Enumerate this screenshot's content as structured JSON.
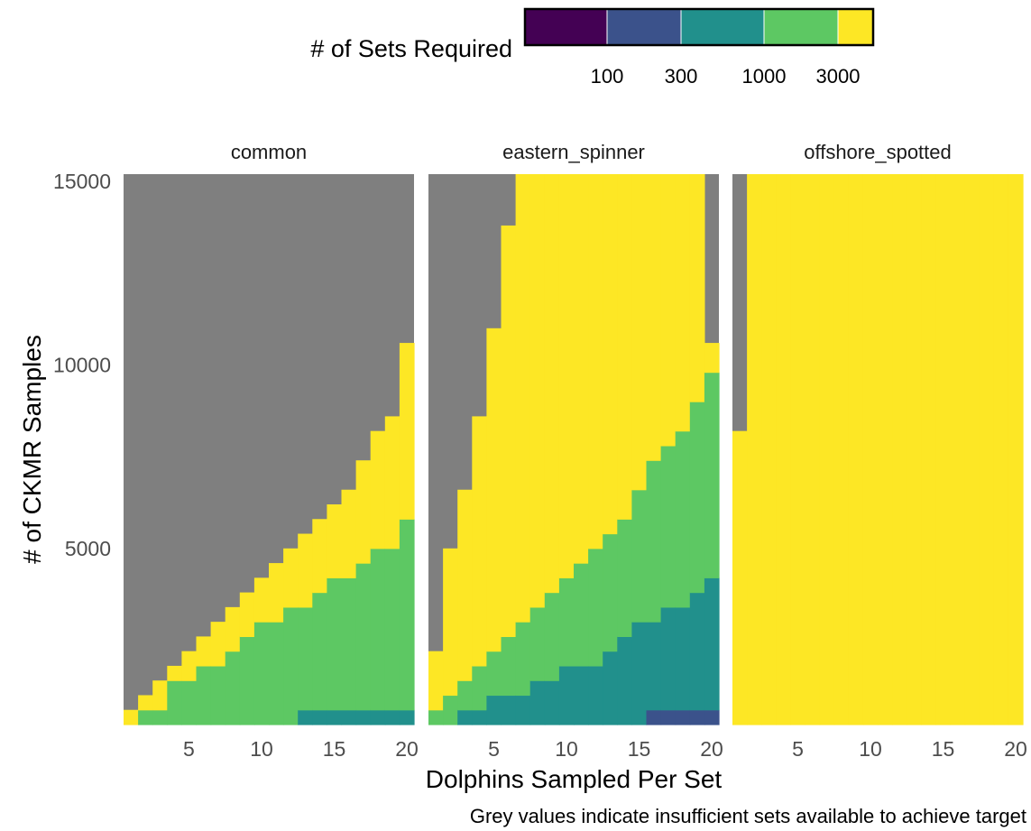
{
  "chart_data": {
    "type": "heatmap",
    "legend": {
      "title": "# of Sets Required",
      "placement": "top",
      "breaks": [
        "100",
        "300",
        "1000",
        "3000"
      ],
      "bins": [
        {
          "key": "lt100",
          "color": "#440154"
        },
        {
          "key": "100-300",
          "color": "#3b528b"
        },
        {
          "key": "300-1000",
          "color": "#21908c"
        },
        {
          "key": "1000-3000",
          "color": "#5dc863"
        },
        {
          "key": "gt3000",
          "color": "#fde725"
        }
      ],
      "insufficient_color": "#7f7f7f"
    },
    "xlabel": "Dolphins Sampled Per Set",
    "ylabel": "# of CKMR Samples",
    "caption": "Grey values indicate insufficient sets available to achieve target",
    "x": {
      "min": 1,
      "max": 20,
      "ticks": [
        5,
        10,
        15,
        20
      ]
    },
    "y": {
      "min": 400,
      "max": 15000,
      "step": 400,
      "ticks": [
        5000,
        10000,
        15000
      ]
    },
    "panels": [
      {
        "name": "common",
        "thresholds": {
          "lt100": [
            0,
            0,
            0,
            0,
            0,
            0,
            0,
            0,
            0,
            0,
            0,
            0,
            0,
            0,
            0,
            0,
            0,
            0,
            0,
            0
          ],
          "100-300": [
            0,
            0,
            0,
            0,
            0,
            0,
            0,
            0,
            0,
            0,
            0,
            0,
            0,
            0,
            0,
            0,
            0,
            0,
            0,
            0
          ],
          "300-1000": [
            0,
            0,
            0,
            0,
            0,
            0,
            0,
            0,
            0,
            0,
            0,
            0,
            400,
            400,
            400,
            400,
            400,
            400,
            400,
            400
          ],
          "1000-3000": [
            0,
            400,
            400,
            1200,
            1200,
            1600,
            1600,
            2000,
            2400,
            2800,
            2800,
            3200,
            3200,
            3600,
            4000,
            4000,
            4400,
            4800,
            4800,
            5600
          ],
          "gt3000": [
            400,
            800,
            1200,
            1600,
            2000,
            2400,
            2800,
            3200,
            3600,
            4000,
            4400,
            4800,
            5200,
            5600,
            6000,
            6400,
            7200,
            8000,
            8400,
            10400
          ]
        }
      },
      {
        "name": "eastern_spinner",
        "thresholds": {
          "lt100": [
            0,
            0,
            0,
            0,
            0,
            0,
            0,
            0,
            0,
            0,
            0,
            0,
            0,
            0,
            0,
            0,
            0,
            0,
            0,
            0
          ],
          "100-300": [
            0,
            0,
            0,
            0,
            0,
            0,
            0,
            0,
            0,
            0,
            0,
            0,
            0,
            0,
            0,
            400,
            400,
            400,
            400,
            400
          ],
          "300-1000": [
            0,
            0,
            400,
            400,
            800,
            800,
            800,
            1200,
            1200,
            1600,
            1600,
            1600,
            2000,
            2400,
            2800,
            2800,
            3200,
            3200,
            3600,
            4000
          ],
          "1000-3000": [
            400,
            800,
            1200,
            1600,
            2000,
            2400,
            2800,
            3200,
            3600,
            4000,
            4400,
            4800,
            5200,
            5600,
            6400,
            7200,
            7600,
            8000,
            8800,
            9600
          ],
          "gt3000": [
            2000,
            4800,
            6400,
            8400,
            10800,
            13600,
            15000,
            15000,
            15000,
            15000,
            15000,
            15000,
            15000,
            15000,
            15000,
            15000,
            15000,
            15000,
            15000,
            10400
          ]
        }
      },
      {
        "name": "offshore_spotted",
        "thresholds": {
          "lt100": [
            0,
            0,
            0,
            0,
            0,
            0,
            0,
            0,
            0,
            0,
            0,
            0,
            0,
            0,
            0,
            0,
            0,
            0,
            0,
            0
          ],
          "100-300": [
            0,
            0,
            0,
            0,
            0,
            0,
            0,
            0,
            0,
            0,
            0,
            0,
            0,
            0,
            0,
            0,
            0,
            0,
            0,
            0
          ],
          "300-1000": [
            0,
            0,
            0,
            0,
            0,
            0,
            0,
            0,
            0,
            0,
            0,
            0,
            0,
            0,
            0,
            0,
            0,
            0,
            0,
            0
          ],
          "1000-3000": [
            0,
            0,
            0,
            0,
            0,
            0,
            0,
            0,
            0,
            0,
            0,
            0,
            0,
            0,
            0,
            0,
            0,
            0,
            0,
            0
          ],
          "gt3000": [
            8000,
            15000,
            15000,
            15000,
            15000,
            15000,
            15000,
            15000,
            15000,
            15000,
            15000,
            15000,
            15000,
            15000,
            15000,
            15000,
            15000,
            15000,
            15000,
            15000
          ]
        }
      }
    ]
  }
}
